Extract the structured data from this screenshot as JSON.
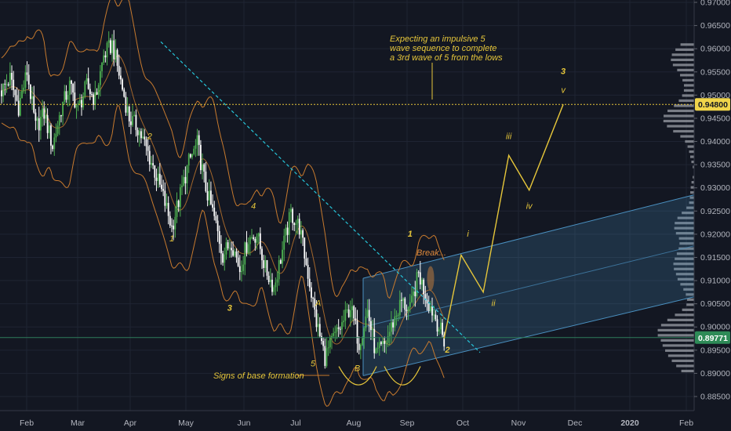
{
  "chart_data": {
    "type": "candlestick",
    "ylim": [
      0.8825,
      0.97
    ],
    "y_ticks": [
      "0.97000",
      "0.96500",
      "0.96000",
      "0.95500",
      "0.95000",
      "0.94500",
      "0.94000",
      "0.93500",
      "0.93000",
      "0.92500",
      "0.92000",
      "0.91500",
      "0.91000",
      "0.90500",
      "0.90000",
      "0.89500",
      "0.89000",
      "0.88500"
    ],
    "x_ticks": [
      "Feb",
      "Mar",
      "Apr",
      "May",
      "Jun",
      "Jul",
      "Aug",
      "Sep",
      "Oct",
      "Nov",
      "Dec",
      "2020",
      "Feb"
    ],
    "current_price": "0.89771",
    "target_price": "0.94800",
    "colors": {
      "up": "#4caf50",
      "down": "#ffffff",
      "annotation": "#e6c63a",
      "band": "#c77a2e",
      "trendline": "#26c6da",
      "channel": "#4a90c0",
      "profile": "#8c8f98"
    },
    "close_path": [
      [
        0,
        0.951
      ],
      [
        5,
        0.9535
      ],
      [
        10,
        0.9475
      ],
      [
        15,
        0.955
      ],
      [
        20,
        0.943
      ],
      [
        25,
        0.946
      ],
      [
        30,
        0.939
      ],
      [
        35,
        0.947
      ],
      [
        40,
        0.952
      ],
      [
        45,
        0.947
      ],
      [
        50,
        0.952
      ],
      [
        55,
        0.949
      ],
      [
        60,
        0.9585
      ],
      [
        65,
        0.961
      ],
      [
        70,
        0.953
      ],
      [
        75,
        0.945
      ],
      [
        80,
        0.943
      ],
      [
        85,
        0.9385
      ],
      [
        90,
        0.9335
      ],
      [
        95,
        0.928
      ],
      [
        100,
        0.9215
      ],
      [
        105,
        0.9285
      ],
      [
        110,
        0.9355
      ],
      [
        115,
        0.9395
      ],
      [
        120,
        0.93
      ],
      [
        125,
        0.9235
      ],
      [
        130,
        0.9155
      ],
      [
        135,
        0.9185
      ],
      [
        140,
        0.9125
      ],
      [
        145,
        0.919
      ],
      [
        150,
        0.92
      ],
      [
        155,
        0.9125
      ],
      [
        160,
        0.9085
      ],
      [
        165,
        0.9165
      ],
      [
        170,
        0.9245
      ],
      [
        175,
        0.9215
      ],
      [
        180,
        0.9115
      ],
      [
        185,
        0.901
      ],
      [
        190,
        0.8935
      ],
      [
        195,
        0.8975
      ],
      [
        200,
        0.9005
      ],
      [
        205,
        0.9045
      ],
      [
        210,
        0.8965
      ],
      [
        215,
        0.9035
      ],
      [
        220,
        0.894
      ],
      [
        225,
        0.896
      ],
      [
        230,
        0.901
      ],
      [
        235,
        0.9055
      ],
      [
        240,
        0.9035
      ],
      [
        245,
        0.9115
      ],
      [
        250,
        0.906
      ],
      [
        255,
        0.902
      ],
      [
        260,
        0.897
      ]
    ],
    "projection_path": [
      [
        260,
        0.8975
      ],
      [
        270,
        0.9155
      ],
      [
        283,
        0.9075
      ],
      [
        298,
        0.937
      ],
      [
        310,
        0.9295
      ],
      [
        330,
        0.948
      ]
    ],
    "wave_labels": [
      {
        "t": 55,
        "v": 0.9585,
        "label": ""
      },
      {
        "t": 87,
        "v": 0.9405,
        "label": "2"
      },
      {
        "t": 100,
        "v": 0.9185,
        "label": "1"
      },
      {
        "t": 118,
        "v": 0.9395,
        "label": ""
      },
      {
        "t": 148,
        "v": 0.9255,
        "label": "4"
      },
      {
        "t": 134,
        "v": 0.9035,
        "label": "3"
      },
      {
        "t": 186,
        "v": 0.9045,
        "label": "A"
      },
      {
        "t": 183,
        "v": 0.8915,
        "label": "5"
      },
      {
        "t": 209,
        "v": 0.8905,
        "label": "B"
      },
      {
        "t": 240,
        "v": 0.9195,
        "label": "1"
      },
      {
        "t": 262,
        "v": 0.8945,
        "label": "2"
      },
      {
        "t": 274,
        "v": 0.9195,
        "label": "i"
      },
      {
        "t": 289,
        "v": 0.9045,
        "label": "ii"
      },
      {
        "t": 298,
        "v": 0.9405,
        "label": "iii"
      },
      {
        "t": 310,
        "v": 0.9255,
        "label": "iv"
      },
      {
        "t": 330,
        "v": 0.9505,
        "label": "v"
      },
      {
        "t": 330,
        "v": 0.9545,
        "label": "3"
      }
    ],
    "break_label": "Break...",
    "note_label": "Expecting an impulsive 5 wave sequence to complete a 3rd wave of 5 from the lows",
    "note_lines": [
      "Expecting an impulsive 5",
      "wave sequence to complete",
      "a 3rd wave of 5 from the lows"
    ],
    "base_label": "Signs of base formation"
  }
}
